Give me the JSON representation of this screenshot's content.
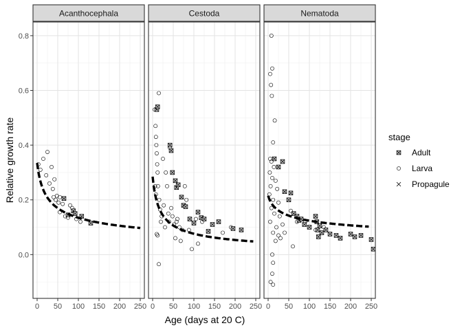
{
  "chart_data": {
    "type": "scatter",
    "xlabel": "Age (days at 20 C)",
    "ylabel": "Relative growth rate",
    "xlim": [
      -10,
      260
    ],
    "ylim": [
      -0.16,
      0.85
    ],
    "x_ticks": [
      0,
      50,
      100,
      150,
      200,
      250
    ],
    "y_ticks": [
      0.0,
      0.2,
      0.4,
      0.6,
      0.8
    ],
    "y_tick_labels": [
      "0.0",
      "0.2",
      "0.4",
      "0.6",
      "0.8"
    ],
    "grid": true,
    "legend": {
      "title": "stage",
      "position": "right",
      "entries": [
        {
          "label": "Adult",
          "shape": "square-x"
        },
        {
          "label": "Larva",
          "shape": "circle"
        },
        {
          "label": "Propagule",
          "shape": "x"
        }
      ]
    },
    "panels": [
      {
        "name": "Acanthocephala",
        "trend": {
          "a": 0.335,
          "b": 0.38,
          "x_from": 0,
          "x_to": 250
        },
        "points": [
          {
            "x": 3,
            "y": 0.33,
            "stage": "Larva"
          },
          {
            "x": 8,
            "y": 0.31,
            "stage": "Larva"
          },
          {
            "x": 15,
            "y": 0.35,
            "stage": "Larva"
          },
          {
            "x": 22,
            "y": 0.29,
            "stage": "Larva"
          },
          {
            "x": 25,
            "y": 0.375,
            "stage": "Larva"
          },
          {
            "x": 30,
            "y": 0.26,
            "stage": "Larva"
          },
          {
            "x": 35,
            "y": 0.32,
            "stage": "Larva"
          },
          {
            "x": 38,
            "y": 0.24,
            "stage": "Larva"
          },
          {
            "x": 40,
            "y": 0.21,
            "stage": "Larva"
          },
          {
            "x": 42,
            "y": 0.275,
            "stage": "Larva"
          },
          {
            "x": 45,
            "y": 0.2,
            "stage": "Larva"
          },
          {
            "x": 48,
            "y": 0.215,
            "stage": "Larva"
          },
          {
            "x": 52,
            "y": 0.19,
            "stage": "Larva"
          },
          {
            "x": 55,
            "y": 0.21,
            "stage": "Larva"
          },
          {
            "x": 55,
            "y": 0.155,
            "stage": "Larva"
          },
          {
            "x": 62,
            "y": 0.185,
            "stage": "Larva"
          },
          {
            "x": 68,
            "y": 0.14,
            "stage": "Larva"
          },
          {
            "x": 75,
            "y": 0.135,
            "stage": "Larva"
          },
          {
            "x": 80,
            "y": 0.18,
            "stage": "Larva"
          },
          {
            "x": 85,
            "y": 0.17,
            "stage": "Larva"
          },
          {
            "x": 95,
            "y": 0.13,
            "stage": "Larva"
          },
          {
            "x": 105,
            "y": 0.12,
            "stage": "Larva"
          },
          {
            "x": 65,
            "y": 0.205,
            "stage": "Adult"
          },
          {
            "x": 75,
            "y": 0.145,
            "stage": "Adult"
          },
          {
            "x": 88,
            "y": 0.16,
            "stage": "Adult"
          },
          {
            "x": 92,
            "y": 0.15,
            "stage": "Adult"
          },
          {
            "x": 108,
            "y": 0.14,
            "stage": "Adult"
          },
          {
            "x": 130,
            "y": 0.115,
            "stage": "Adult"
          }
        ]
      },
      {
        "name": "Cestoda",
        "trend": {
          "a": 0.285,
          "b": 0.55,
          "x_from": 0,
          "x_to": 245
        },
        "points": [
          {
            "x": 5,
            "y": 0.53,
            "stage": "Larva"
          },
          {
            "x": 7,
            "y": 0.47,
            "stage": "Larva"
          },
          {
            "x": 8,
            "y": 0.43,
            "stage": "Larva"
          },
          {
            "x": 9,
            "y": 0.4,
            "stage": "Larva"
          },
          {
            "x": 10,
            "y": 0.37,
            "stage": "Larva"
          },
          {
            "x": 11,
            "y": 0.33,
            "stage": "Larva"
          },
          {
            "x": 12,
            "y": 0.3,
            "stage": "Larva"
          },
          {
            "x": 6,
            "y": 0.25,
            "stage": "Larva"
          },
          {
            "x": 8,
            "y": 0.22,
            "stage": "Larva"
          },
          {
            "x": 10,
            "y": 0.075,
            "stage": "Larva"
          },
          {
            "x": 12,
            "y": 0.07,
            "stage": "Larva"
          },
          {
            "x": 13,
            "y": 0.25,
            "stage": "Larva"
          },
          {
            "x": 15,
            "y": 0.59,
            "stage": "Larva"
          },
          {
            "x": 15,
            "y": -0.035,
            "stage": "Larva"
          },
          {
            "x": 16,
            "y": 0.2,
            "stage": "Larva"
          },
          {
            "x": 18,
            "y": 0.165,
            "stage": "Larva"
          },
          {
            "x": 20,
            "y": 0.12,
            "stage": "Larva"
          },
          {
            "x": 22,
            "y": 0.14,
            "stage": "Larva"
          },
          {
            "x": 25,
            "y": 0.35,
            "stage": "Larva"
          },
          {
            "x": 27,
            "y": 0.18,
            "stage": "Larva"
          },
          {
            "x": 30,
            "y": 0.1,
            "stage": "Larva"
          },
          {
            "x": 32,
            "y": 0.3,
            "stage": "Larva"
          },
          {
            "x": 35,
            "y": 0.25,
            "stage": "Larva"
          },
          {
            "x": 38,
            "y": 0.15,
            "stage": "Larva"
          },
          {
            "x": 40,
            "y": 0.12,
            "stage": "Larva"
          },
          {
            "x": 42,
            "y": 0.39,
            "stage": "Larva"
          },
          {
            "x": 45,
            "y": 0.17,
            "stage": "Larva"
          },
          {
            "x": 48,
            "y": 0.14,
            "stage": "Larva"
          },
          {
            "x": 52,
            "y": 0.11,
            "stage": "Larva"
          },
          {
            "x": 55,
            "y": 0.06,
            "stage": "Larva"
          },
          {
            "x": 58,
            "y": 0.12,
            "stage": "Larva"
          },
          {
            "x": 60,
            "y": 0.13,
            "stage": "Larva"
          },
          {
            "x": 65,
            "y": 0.1,
            "stage": "Larva"
          },
          {
            "x": 68,
            "y": 0.05,
            "stage": "Larva"
          },
          {
            "x": 72,
            "y": 0.09,
            "stage": "Larva"
          },
          {
            "x": 78,
            "y": 0.25,
            "stage": "Larva"
          },
          {
            "x": 82,
            "y": 0.2,
            "stage": "Larva"
          },
          {
            "x": 88,
            "y": 0.09,
            "stage": "Larva"
          },
          {
            "x": 95,
            "y": 0.02,
            "stage": "Larva"
          },
          {
            "x": 105,
            "y": 0.13,
            "stage": "Larva"
          },
          {
            "x": 110,
            "y": 0.04,
            "stage": "Larva"
          },
          {
            "x": 120,
            "y": 0.12,
            "stage": "Larva"
          },
          {
            "x": 170,
            "y": 0.08,
            "stage": "Larva"
          },
          {
            "x": 190,
            "y": 0.1,
            "stage": "Larva"
          },
          {
            "x": 10,
            "y": 0.53,
            "stage": "Adult"
          },
          {
            "x": 12,
            "y": 0.54,
            "stage": "Adult"
          },
          {
            "x": 42,
            "y": 0.4,
            "stage": "Adult"
          },
          {
            "x": 45,
            "y": 0.38,
            "stage": "Adult"
          },
          {
            "x": 48,
            "y": 0.3,
            "stage": "Adult"
          },
          {
            "x": 55,
            "y": 0.27,
            "stage": "Adult"
          },
          {
            "x": 58,
            "y": 0.245,
            "stage": "Adult"
          },
          {
            "x": 62,
            "y": 0.255,
            "stage": "Adult"
          },
          {
            "x": 70,
            "y": 0.21,
            "stage": "Adult"
          },
          {
            "x": 75,
            "y": 0.18,
            "stage": "Adult"
          },
          {
            "x": 80,
            "y": 0.175,
            "stage": "Adult"
          },
          {
            "x": 90,
            "y": 0.13,
            "stage": "Adult"
          },
          {
            "x": 100,
            "y": 0.115,
            "stage": "Adult"
          },
          {
            "x": 110,
            "y": 0.155,
            "stage": "Adult"
          },
          {
            "x": 118,
            "y": 0.135,
            "stage": "Adult"
          },
          {
            "x": 125,
            "y": 0.13,
            "stage": "Adult"
          },
          {
            "x": 135,
            "y": 0.085,
            "stage": "Adult"
          },
          {
            "x": 145,
            "y": 0.11,
            "stage": "Adult"
          },
          {
            "x": 160,
            "y": 0.12,
            "stage": "Adult"
          },
          {
            "x": 195,
            "y": 0.095,
            "stage": "Adult"
          },
          {
            "x": 215,
            "y": 0.09,
            "stage": "Adult"
          }
        ]
      },
      {
        "name": "Nematoda",
        "trend": {
          "a": 0.215,
          "b": 0.23,
          "x_from": 0,
          "x_to": 245
        },
        "points": [
          {
            "x": 8,
            "y": 0.8,
            "stage": "Larva"
          },
          {
            "x": 10,
            "y": 0.68,
            "stage": "Larva"
          },
          {
            "x": 5,
            "y": 0.66,
            "stage": "Larva"
          },
          {
            "x": 7,
            "y": 0.62,
            "stage": "Larva"
          },
          {
            "x": 9,
            "y": 0.58,
            "stage": "Larva"
          },
          {
            "x": 16,
            "y": 0.49,
            "stage": "Larva"
          },
          {
            "x": 12,
            "y": 0.41,
            "stage": "Larva"
          },
          {
            "x": 5,
            "y": 0.35,
            "stage": "Larva"
          },
          {
            "x": 8,
            "y": 0.34,
            "stage": "Larva"
          },
          {
            "x": 14,
            "y": 0.32,
            "stage": "Larva"
          },
          {
            "x": 4,
            "y": 0.3,
            "stage": "Larva"
          },
          {
            "x": 10,
            "y": 0.28,
            "stage": "Larva"
          },
          {
            "x": 18,
            "y": 0.27,
            "stage": "Larva"
          },
          {
            "x": 6,
            "y": 0.25,
            "stage": "Larva"
          },
          {
            "x": 22,
            "y": 0.24,
            "stage": "Larva"
          },
          {
            "x": 3,
            "y": 0.22,
            "stage": "Larva"
          },
          {
            "x": 12,
            "y": 0.2,
            "stage": "Larva"
          },
          {
            "x": 25,
            "y": 0.19,
            "stage": "Larva"
          },
          {
            "x": 8,
            "y": 0.17,
            "stage": "Larva"
          },
          {
            "x": 15,
            "y": 0.15,
            "stage": "Larva"
          },
          {
            "x": 28,
            "y": 0.14,
            "stage": "Larva"
          },
          {
            "x": 5,
            "y": 0.12,
            "stage": "Larva"
          },
          {
            "x": 20,
            "y": 0.1,
            "stage": "Larva"
          },
          {
            "x": 35,
            "y": 0.11,
            "stage": "Larva"
          },
          {
            "x": 12,
            "y": 0.08,
            "stage": "Larva"
          },
          {
            "x": 25,
            "y": 0.07,
            "stage": "Larva"
          },
          {
            "x": 40,
            "y": 0.08,
            "stage": "Larva"
          },
          {
            "x": 18,
            "y": 0.05,
            "stage": "Larva"
          },
          {
            "x": 30,
            "y": 0.06,
            "stage": "Larva"
          },
          {
            "x": 10,
            "y": 0.0,
            "stage": "Larva"
          },
          {
            "x": 12,
            "y": -0.03,
            "stage": "Larva"
          },
          {
            "x": 10,
            "y": -0.07,
            "stage": "Larva"
          },
          {
            "x": 6,
            "y": -0.1,
            "stage": "Larva"
          },
          {
            "x": 12,
            "y": -0.11,
            "stage": "Larva"
          },
          {
            "x": 55,
            "y": 0.16,
            "stage": "Larva"
          },
          {
            "x": 60,
            "y": 0.03,
            "stage": "Larva"
          },
          {
            "x": 70,
            "y": 0.12,
            "stage": "Larva"
          },
          {
            "x": 90,
            "y": 0.12,
            "stage": "Larva"
          },
          {
            "x": 115,
            "y": 0.09,
            "stage": "Larva"
          },
          {
            "x": 135,
            "y": 0.1,
            "stage": "Larva"
          },
          {
            "x": 15,
            "y": 0.35,
            "stage": "Adult"
          },
          {
            "x": 25,
            "y": 0.32,
            "stage": "Adult"
          },
          {
            "x": 35,
            "y": 0.34,
            "stage": "Adult"
          },
          {
            "x": 40,
            "y": 0.23,
            "stage": "Adult"
          },
          {
            "x": 50,
            "y": 0.2,
            "stage": "Adult"
          },
          {
            "x": 55,
            "y": 0.225,
            "stage": "Adult"
          },
          {
            "x": 62,
            "y": 0.15,
            "stage": "Adult"
          },
          {
            "x": 70,
            "y": 0.14,
            "stage": "Adult"
          },
          {
            "x": 75,
            "y": 0.125,
            "stage": "Adult"
          },
          {
            "x": 80,
            "y": 0.13,
            "stage": "Adult"
          },
          {
            "x": 88,
            "y": 0.11,
            "stage": "Adult"
          },
          {
            "x": 100,
            "y": 0.1,
            "stage": "Adult"
          },
          {
            "x": 115,
            "y": 0.14,
            "stage": "Adult"
          },
          {
            "x": 118,
            "y": 0.12,
            "stage": "Adult"
          },
          {
            "x": 120,
            "y": 0.09,
            "stage": "Adult"
          },
          {
            "x": 122,
            "y": 0.065,
            "stage": "Adult"
          },
          {
            "x": 125,
            "y": 0.105,
            "stage": "Adult"
          },
          {
            "x": 130,
            "y": 0.08,
            "stage": "Adult"
          },
          {
            "x": 140,
            "y": 0.09,
            "stage": "Adult"
          },
          {
            "x": 150,
            "y": 0.075,
            "stage": "Adult"
          },
          {
            "x": 165,
            "y": 0.07,
            "stage": "Adult"
          },
          {
            "x": 175,
            "y": 0.06,
            "stage": "Adult"
          },
          {
            "x": 200,
            "y": 0.075,
            "stage": "Adult"
          },
          {
            "x": 210,
            "y": 0.065,
            "stage": "Adult"
          },
          {
            "x": 225,
            "y": 0.07,
            "stage": "Adult"
          },
          {
            "x": 250,
            "y": 0.055,
            "stage": "Adult"
          },
          {
            "x": 255,
            "y": 0.02,
            "stage": "Adult"
          }
        ]
      }
    ]
  }
}
